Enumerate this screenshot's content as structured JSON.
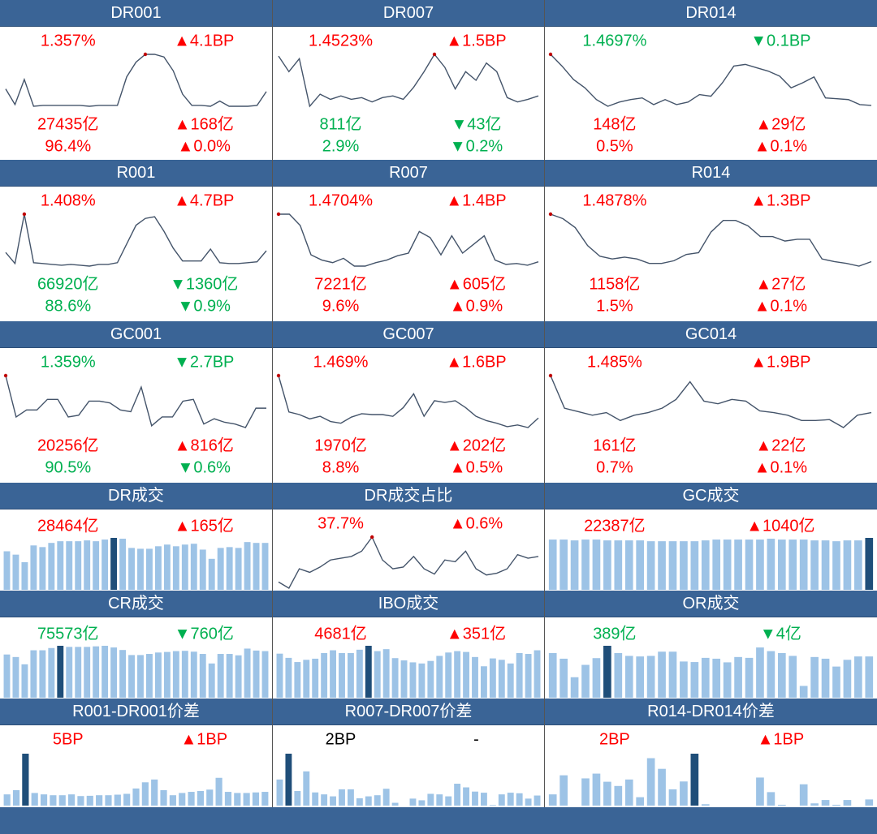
{
  "colors": {
    "red": "#ff0000",
    "green": "#00b050",
    "black": "#000000",
    "header": "#3a6496",
    "bar": "#9dc3e6",
    "bar_highlight": "#1f4e79",
    "line": "#44546a",
    "marker": "#c00000"
  },
  "panels": [
    {
      "title": "DR001",
      "type": "line",
      "stats": [
        [
          {
            "t": "1.357%",
            "c": "red"
          },
          {
            "t": "▲4.1BP",
            "c": "red"
          }
        ],
        [
          {
            "t": "27435亿",
            "c": "red"
          },
          {
            "t": "▲168亿",
            "c": "red"
          }
        ],
        [
          {
            "t": "96.4%",
            "c": "red"
          },
          {
            "t": "▲0.0%",
            "c": "red"
          }
        ]
      ],
      "values": [
        30,
        12,
        41,
        10,
        11,
        11,
        11,
        11,
        11,
        10,
        11,
        11,
        11,
        44,
        61,
        70,
        70,
        67,
        51,
        24,
        11,
        11,
        10,
        16,
        10,
        10,
        10,
        11,
        27
      ],
      "highlight": 15
    },
    {
      "title": "DR007",
      "type": "line",
      "stats": [
        [
          {
            "t": "1.4523%",
            "c": "red"
          },
          {
            "t": "▲1.5BP",
            "c": "red"
          }
        ],
        [
          {
            "t": "811亿",
            "c": "green"
          },
          {
            "t": "▼43亿",
            "c": "green"
          }
        ],
        [
          {
            "t": "2.9%",
            "c": "green"
          },
          {
            "t": "▼0.2%",
            "c": "green"
          }
        ]
      ],
      "values": [
        68,
        50,
        65,
        10,
        24,
        18,
        22,
        18,
        20,
        15,
        20,
        22,
        18,
        32,
        50,
        70,
        55,
        30,
        50,
        40,
        60,
        50,
        20,
        15,
        18,
        22
      ],
      "highlight": 15
    },
    {
      "title": "DR014",
      "type": "line",
      "stats": [
        [
          {
            "t": "1.4697%",
            "c": "green"
          },
          {
            "t": "▼0.1BP",
            "c": "green"
          }
        ],
        [
          {
            "t": "148亿",
            "c": "red"
          },
          {
            "t": "▲29亿",
            "c": "red"
          }
        ],
        [
          {
            "t": "0.5%",
            "c": "red"
          },
          {
            "t": "▲0.1%",
            "c": "red"
          }
        ]
      ],
      "values": [
        72,
        58,
        42,
        32,
        18,
        10,
        15,
        18,
        20,
        12,
        18,
        12,
        15,
        24,
        22,
        38,
        58,
        60,
        56,
        52,
        46,
        32,
        38,
        45,
        20,
        19,
        18,
        12,
        11
      ],
      "highlight": 0
    },
    {
      "title": "R001",
      "type": "line",
      "stats": [
        [
          {
            "t": "1.408%",
            "c": "red"
          },
          {
            "t": "▲4.7BP",
            "c": "red"
          }
        ],
        [
          {
            "t": "66920亿",
            "c": "green"
          },
          {
            "t": "▼1360亿",
            "c": "green"
          }
        ],
        [
          {
            "t": "88.6%",
            "c": "green"
          },
          {
            "t": "▼0.9%",
            "c": "green"
          }
        ]
      ],
      "values": [
        30,
        17,
        75,
        18,
        17,
        16,
        15,
        16,
        15,
        14,
        16,
        16,
        18,
        40,
        62,
        70,
        72,
        55,
        35,
        20,
        20,
        20,
        34,
        18,
        17,
        17,
        18,
        19,
        32
      ],
      "highlight": 2
    },
    {
      "title": "R007",
      "type": "line",
      "stats": [
        [
          {
            "t": "1.4704%",
            "c": "red"
          },
          {
            "t": "▲1.4BP",
            "c": "red"
          }
        ],
        [
          {
            "t": "7221亿",
            "c": "red"
          },
          {
            "t": "▲605亿",
            "c": "red"
          }
        ],
        [
          {
            "t": "9.6%",
            "c": "red"
          },
          {
            "t": "▲0.9%",
            "c": "red"
          }
        ]
      ],
      "values": [
        75,
        75,
        62,
        28,
        22,
        19,
        24,
        15,
        15,
        19,
        22,
        27,
        30,
        55,
        48,
        28,
        50,
        30,
        40,
        50,
        22,
        17,
        18,
        16,
        20
      ],
      "highlight": 0
    },
    {
      "title": "R014",
      "type": "line",
      "stats": [
        [
          {
            "t": "1.4878%",
            "c": "red"
          },
          {
            "t": "▲1.3BP",
            "c": "red"
          }
        ],
        [
          {
            "t": "1158亿",
            "c": "red"
          },
          {
            "t": "▲27亿",
            "c": "red"
          }
        ],
        [
          {
            "t": "1.5%",
            "c": "red"
          },
          {
            "t": "▲0.1%",
            "c": "red"
          }
        ]
      ],
      "values": [
        75,
        70,
        60,
        40,
        28,
        25,
        27,
        25,
        20,
        20,
        23,
        30,
        32,
        55,
        68,
        68,
        62,
        50,
        50,
        45,
        47,
        47,
        25,
        22,
        20,
        17,
        22
      ],
      "highlight": 0
    },
    {
      "title": "GC001",
      "type": "line",
      "stats": [
        [
          {
            "t": "1.359%",
            "c": "green"
          },
          {
            "t": "▼2.7BP",
            "c": "green"
          }
        ],
        [
          {
            "t": "20256亿",
            "c": "red"
          },
          {
            "t": "▲816亿",
            "c": "red"
          }
        ],
        [
          {
            "t": "90.5%",
            "c": "green"
          },
          {
            "t": "▼0.6%",
            "c": "green"
          }
        ]
      ],
      "values": [
        77,
        30,
        38,
        38,
        50,
        50,
        30,
        32,
        48,
        48,
        46,
        38,
        36,
        64,
        20,
        30,
        30,
        48,
        50,
        22,
        28,
        24,
        22,
        18,
        40,
        40
      ],
      "highlight": 0
    },
    {
      "title": "GC007",
      "type": "line",
      "stats": [
        [
          {
            "t": "1.469%",
            "c": "red"
          },
          {
            "t": "▲1.6BP",
            "c": "red"
          }
        ],
        [
          {
            "t": "1970亿",
            "c": "red"
          },
          {
            "t": "▲202亿",
            "c": "red"
          }
        ],
        [
          {
            "t": "8.8%",
            "c": "red"
          },
          {
            "t": "▲0.5%",
            "c": "red"
          }
        ]
      ],
      "values": [
        77,
        35,
        32,
        27,
        30,
        24,
        22,
        29,
        33,
        32,
        32,
        30,
        40,
        56,
        30,
        48,
        46,
        48,
        40,
        30,
        25,
        22,
        18,
        20,
        17,
        28
      ],
      "highlight": 0
    },
    {
      "title": "GC014",
      "type": "line",
      "stats": [
        [
          {
            "t": "1.485%",
            "c": "red"
          },
          {
            "t": "▲1.9BP",
            "c": "red"
          }
        ],
        [
          {
            "t": "161亿",
            "c": "red"
          },
          {
            "t": "▲22亿",
            "c": "red"
          }
        ],
        [
          {
            "t": "0.7%",
            "c": "red"
          },
          {
            "t": "▲0.1%",
            "c": "red"
          }
        ]
      ],
      "values": [
        77,
        40,
        36,
        32,
        35,
        26,
        32,
        35,
        40,
        50,
        70,
        48,
        45,
        50,
        48,
        37,
        35,
        32,
        26,
        26,
        27,
        18,
        32,
        35
      ],
      "highlight": 0
    },
    {
      "title": "DR成交",
      "type": "bar",
      "stats": [
        [
          {
            "t": "28464亿",
            "c": "red"
          },
          {
            "t": "▲165亿",
            "c": "red"
          }
        ]
      ],
      "values": [
        46,
        42,
        33,
        53,
        51,
        56,
        58,
        58,
        58,
        59,
        58,
        60,
        62,
        61,
        50,
        49,
        49,
        52,
        54,
        52,
        54,
        55,
        48,
        37,
        50,
        51,
        50,
        57,
        56,
        56
      ],
      "highlight": 12
    },
    {
      "title": "DR成交占比",
      "type": "line",
      "stats": [
        [
          {
            "t": "37.7%",
            "c": "red"
          },
          {
            "t": "▲0.6%",
            "c": "red"
          }
        ]
      ],
      "values": [
        25,
        18,
        40,
        36,
        42,
        50,
        52,
        54,
        60,
        76,
        50,
        40,
        42,
        54,
        40,
        34,
        50,
        48,
        60,
        40,
        33,
        35,
        40,
        56,
        52,
        54
      ],
      "highlight": 9
    },
    {
      "title": "GC成交",
      "type": "bar",
      "stats": [
        [
          {
            "t": "22387亿",
            "c": "red"
          },
          {
            "t": "▲1040亿",
            "c": "red"
          }
        ]
      ],
      "values": [
        60,
        60,
        59,
        60,
        60,
        59,
        59,
        59,
        59,
        58,
        58,
        58,
        58,
        58,
        59,
        60,
        60,
        60,
        60,
        60,
        61,
        60,
        60,
        60,
        59,
        59,
        58,
        59,
        59,
        62
      ],
      "highlight": 29
    },
    {
      "title": "CR成交",
      "type": "bar",
      "stats": [
        [
          {
            "t": "75573亿",
            "c": "green"
          },
          {
            "t": "▼760亿",
            "c": "green"
          }
        ]
      ],
      "values": [
        154,
        145,
        119,
        169,
        169,
        177,
        185,
        181,
        181,
        181,
        183,
        185,
        179,
        170,
        152,
        152,
        156,
        161,
        163,
        166,
        167,
        164,
        156,
        122,
        156,
        156,
        151,
        175,
        168,
        166
      ],
      "highlight": 6
    },
    {
      "title": "IBO成交",
      "type": "bar",
      "stats": [
        [
          {
            "t": "4681亿",
            "c": "red"
          },
          {
            "t": "▲351亿",
            "c": "red"
          }
        ]
      ],
      "values": [
        157,
        142,
        127,
        135,
        139,
        159,
        169,
        159,
        159,
        171,
        185,
        166,
        173,
        141,
        133,
        126,
        122,
        131,
        149,
        161,
        166,
        163,
        145,
        112,
        140,
        135,
        122,
        159,
        156,
        169
      ],
      "highlight": 10
    },
    {
      "title": "OR成交",
      "type": "bar",
      "stats": [
        [
          {
            "t": "389亿",
            "c": "green"
          },
          {
            "t": "▼4亿",
            "c": "green"
          }
        ]
      ],
      "values": [
        159,
        139,
        73,
        117,
        141,
        185,
        159,
        149,
        147,
        149,
        164,
        164,
        129,
        127,
        142,
        139,
        126,
        145,
        142,
        179,
        166,
        159,
        149,
        42,
        145,
        139,
        111,
        135,
        147,
        147
      ],
      "highlight": 5
    },
    {
      "title": "R001-DR001价差",
      "type": "bar",
      "stats": [
        [
          {
            "t": "5BP",
            "c": "red"
          },
          {
            "t": "▲1BP",
            "c": "red"
          }
        ]
      ],
      "values": [
        40,
        55,
        185,
        45,
        40,
        37,
        37,
        40,
        34,
        35,
        37,
        37,
        39,
        42,
        61,
        83,
        93,
        55,
        37,
        45,
        49,
        52,
        57,
        99,
        49,
        45,
        45,
        47,
        49
      ],
      "highlight": 2
    },
    {
      "title": "R007-DR007价差",
      "type": "bar",
      "stats": [
        [
          {
            "t": "2BP",
            "c": "black"
          },
          {
            "t": "-",
            "c": "black"
          }
        ]
      ],
      "values": [
        93,
        185,
        52,
        122,
        47,
        40,
        33,
        58,
        58,
        26,
        33,
        37,
        60,
        10,
        0,
        25,
        19,
        42,
        40,
        33,
        78,
        65,
        50,
        46,
        2,
        40,
        46,
        44,
        25,
        36
      ],
      "highlight": 1
    },
    {
      "title": "R014-DR014价差",
      "type": "bar",
      "stats": [
        [
          {
            "t": "2BP",
            "c": "red"
          },
          {
            "t": "▲1BP",
            "c": "red"
          }
        ]
      ],
      "values": [
        40,
        108,
        0,
        97,
        114,
        85,
        70,
        93,
        30,
        169,
        131,
        58,
        86,
        185,
        5,
        0,
        0,
        0,
        0,
        100,
        48,
        3,
        0,
        76,
        8,
        20,
        3,
        20,
        0,
        22
      ],
      "highlight": 13
    }
  ]
}
